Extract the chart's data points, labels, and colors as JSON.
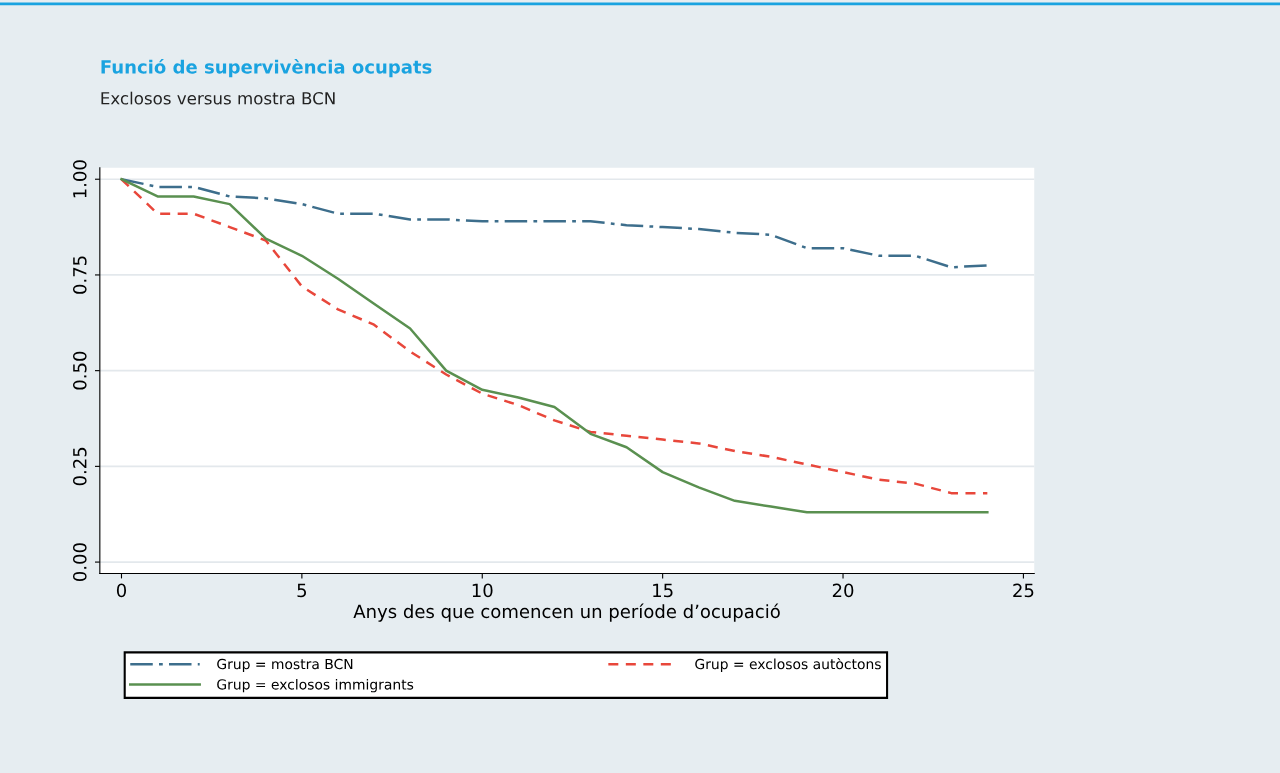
{
  "chart_data": {
    "type": "line",
    "title": "Funció de supervivència ocupats",
    "subtitle": "Exclosos versus mostra BCN",
    "xlabel": "Anys des que comencen un període d’ocupació",
    "x": [
      0,
      1,
      2,
      3,
      4,
      5,
      6,
      7,
      8,
      9,
      10,
      11,
      12,
      13,
      14,
      15,
      16,
      17,
      18,
      19,
      20,
      21,
      22,
      23,
      24
    ],
    "series": [
      {
        "name": "Grup = mostra BCN",
        "color": "#3d6e8c",
        "line_style": "dashdot",
        "values": [
          1,
          0.98,
          0.98,
          0.955,
          0.95,
          0.935,
          0.91,
          0.91,
          0.895,
          0.895,
          0.89,
          0.89,
          0.89,
          0.89,
          0.88,
          0.875,
          0.87,
          0.86,
          0.855,
          0.82,
          0.82,
          0.8,
          0.8,
          0.77,
          0.775
        ]
      },
      {
        "name": "Grup = exclosos autòctons",
        "color": "#e8473b",
        "line_style": "dashed",
        "values": [
          1,
          0.91,
          0.91,
          0.875,
          0.84,
          0.72,
          0.66,
          0.62,
          0.55,
          0.49,
          0.44,
          0.41,
          0.37,
          0.34,
          0.33,
          0.32,
          0.31,
          0.29,
          0.275,
          0.255,
          0.235,
          0.215,
          0.205,
          0.18,
          0.18
        ]
      },
      {
        "name": "Grup = exclosos immigrants",
        "color": "#5a9050",
        "line_style": "solid",
        "values": [
          1,
          0.955,
          0.955,
          0.935,
          0.845,
          0.8,
          0.74,
          0.675,
          0.61,
          0.5,
          0.45,
          0.43,
          0.405,
          0.335,
          0.3,
          0.235,
          0.195,
          0.16,
          0.145,
          0.13,
          0.13,
          0.13,
          0.13,
          0.13,
          0.13
        ]
      }
    ],
    "xlim": [
      -0.6,
      25.3
    ],
    "ylim": [
      -0.03,
      1.03
    ],
    "xticks": [
      0,
      5,
      10,
      15,
      20,
      25
    ],
    "yticks": [
      {
        "value": 0,
        "label": "0.00"
      },
      {
        "value": 0.25,
        "label": "0.25"
      },
      {
        "value": 0.5,
        "label": "0.50"
      },
      {
        "value": 0.75,
        "label": "0.75"
      },
      {
        "value": 1,
        "label": "1.00"
      }
    ],
    "grid": "y",
    "legend": "bottom"
  }
}
